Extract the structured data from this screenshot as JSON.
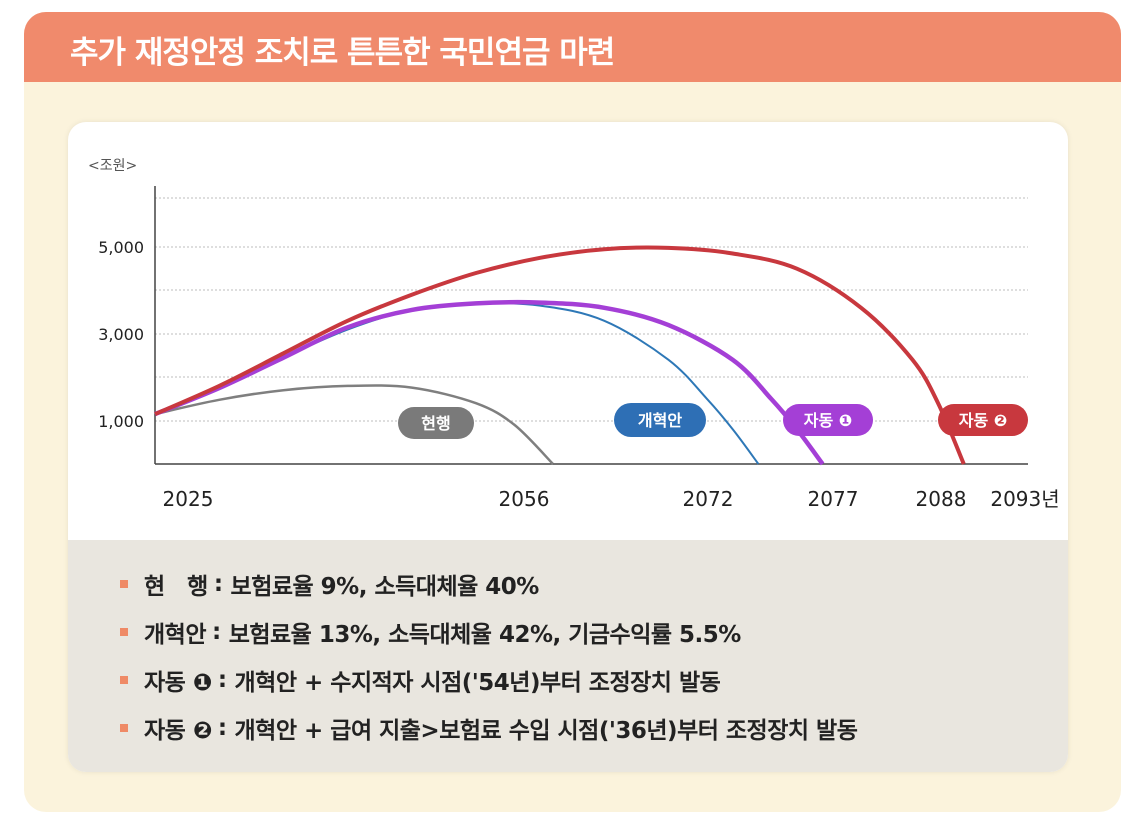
{
  "header": {
    "title": "추가 재정안정 조치로 튼튼한 국민연금 마련"
  },
  "chart_data": {
    "type": "line",
    "unit_label": "<조원>",
    "y_ticks": [
      "1,000",
      "3,000",
      "5,000"
    ],
    "y_tick_values": [
      1000,
      3000,
      5000
    ],
    "ylim": [
      0,
      6200
    ],
    "xlim": [
      2025,
      2093
    ],
    "x_ticks": [
      "2025",
      "2056",
      "2072",
      "2077",
      "2088",
      "2093년"
    ],
    "x_tick_values": [
      2025,
      2056,
      2072,
      2077,
      2088,
      2093
    ],
    "series": [
      {
        "name": "현행",
        "color": "#7f7f7f",
        "x": [
          2025,
          2030,
          2035,
          2040,
          2045,
          2050,
          2053,
          2056
        ],
        "values": [
          1150,
          1480,
          1700,
          1800,
          1760,
          1400,
          900,
          0
        ]
      },
      {
        "name": "개혁안",
        "color": "#2e78b7",
        "x": [
          2025,
          2030,
          2035,
          2040,
          2045,
          2050,
          2055,
          2060,
          2065,
          2068,
          2070,
          2072
        ],
        "values": [
          1150,
          1750,
          2450,
          3100,
          3550,
          3700,
          3650,
          3300,
          2400,
          1500,
          800,
          0
        ]
      },
      {
        "name": "자동 ❶",
        "color": "#a43fd6",
        "x": [
          2025,
          2030,
          2035,
          2040,
          2045,
          2050,
          2055,
          2060,
          2065,
          2070,
          2073,
          2075,
          2077
        ],
        "values": [
          1150,
          1750,
          2450,
          3150,
          3550,
          3700,
          3720,
          3600,
          3200,
          2400,
          1500,
          800,
          0
        ]
      },
      {
        "name": "자동 ❷",
        "color": "#c8383e",
        "x": [
          2025,
          2030,
          2035,
          2040,
          2045,
          2050,
          2055,
          2060,
          2065,
          2070,
          2075,
          2080,
          2084,
          2086,
          2088
        ],
        "values": [
          1150,
          1800,
          2550,
          3300,
          3900,
          4400,
          4750,
          4950,
          4980,
          4850,
          4500,
          3600,
          2400,
          1400,
          0
        ]
      }
    ]
  },
  "labels": {
    "current": "현행",
    "reform": "개혁안",
    "auto1": "자동 ❶",
    "auto2": "자동 ❷"
  },
  "legend": [
    {
      "term": "현　행",
      "sep": ":",
      "desc": "보험료율 9%, 소득대체율 40%"
    },
    {
      "term": "개혁안",
      "sep": ":",
      "desc": "보험료율 13%, 소득대체율 42%, 기금수익률 5.5%"
    },
    {
      "term": "자동 ❶",
      "sep": ":",
      "desc": "개혁안 + 수지적자 시점('54년)부터 조정장치 발동"
    },
    {
      "term": "자동 ❷",
      "sep": ":",
      "desc": "개혁안 + 급여 지출>보험료 수입 시점('36년)부터 조정장치 발동"
    }
  ],
  "colors": {
    "header": "#f08a6c",
    "outer_bg": "#fbf3dc",
    "legend_bg": "#e9e6df",
    "bullet": "#ef8a66",
    "current_badge": "#7a7a7a",
    "reform_badge": "#2e6fb5",
    "auto1_badge": "#a43fd6",
    "auto2_badge": "#c8383e"
  }
}
